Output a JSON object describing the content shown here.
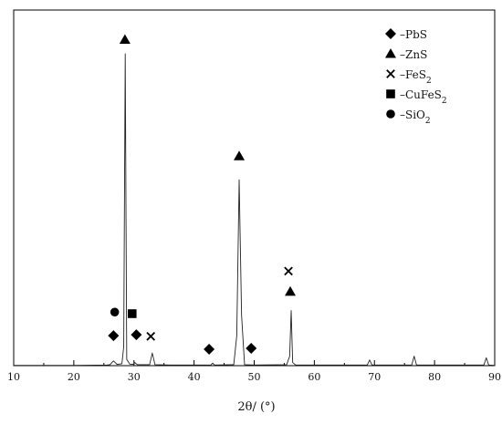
{
  "chart_data": {
    "type": "line",
    "xlabel": "2θ/ (°)",
    "ylabel": "",
    "xlim": [
      10,
      90
    ],
    "x_ticks": [
      "10",
      "20",
      "30",
      "40",
      "50",
      "60",
      "70",
      "80",
      "90"
    ],
    "grid": false,
    "legend_position": "top-right",
    "legend": [
      {
        "marker": "diamond",
        "prefix": "–PbS",
        "sub": ""
      },
      {
        "marker": "triangle",
        "prefix": "–ZnS",
        "sub": ""
      },
      {
        "marker": "cross",
        "prefix": "–FeS",
        "sub": "2"
      },
      {
        "marker": "square",
        "prefix": "–CuFeS",
        "sub": "2"
      },
      {
        "marker": "circle",
        "prefix": "–SiO",
        "sub": "2"
      }
    ],
    "series": [
      {
        "x": [
          10,
          20,
          25.5,
          26.0,
          26.6,
          27.2,
          28.0,
          28.3,
          28.55,
          28.8,
          29.3,
          30.0,
          30.1,
          30.6,
          32.6,
          33.05,
          33.5,
          36,
          40,
          42.8,
          43.1,
          43.4,
          46.6,
          47.1,
          47.5,
          47.9,
          48.4,
          50,
          55.4,
          55.9,
          56.15,
          56.4,
          56.9,
          60,
          68.8,
          69.2,
          69.6,
          76.2,
          76.6,
          77.0,
          88.2,
          88.6,
          89.0,
          90
        ],
        "y": [
          1,
          1,
          2,
          3,
          15,
          4,
          6,
          60,
          990,
          20,
          5,
          4,
          10,
          3,
          3,
          40,
          3,
          2,
          2,
          2,
          8,
          2,
          3,
          95,
          590,
          160,
          3,
          2,
          3,
          30,
          175,
          10,
          2,
          2,
          2,
          18,
          2,
          2,
          30,
          2,
          2,
          25,
          2,
          1
        ]
      }
    ],
    "annotations": [
      {
        "marker": "triangle",
        "x": 28.5,
        "y": 1035
      },
      {
        "marker": "diamond",
        "x": 26.6,
        "y": 95
      },
      {
        "marker": "circle",
        "x": 26.8,
        "y": 170
      },
      {
        "marker": "square",
        "x": 29.7,
        "y": 165
      },
      {
        "marker": "diamond",
        "x": 30.4,
        "y": 98
      },
      {
        "marker": "cross",
        "x": 32.8,
        "y": 93
      },
      {
        "marker": "diamond",
        "x": 42.5,
        "y": 52
      },
      {
        "marker": "diamond",
        "x": 49.5,
        "y": 55
      },
      {
        "marker": "triangle",
        "x": 47.5,
        "y": 665
      },
      {
        "marker": "cross",
        "x": 55.7,
        "y": 300
      },
      {
        "marker": "triangle",
        "x": 56.0,
        "y": 235
      }
    ],
    "ylim": [
      0,
      1100
    ]
  }
}
